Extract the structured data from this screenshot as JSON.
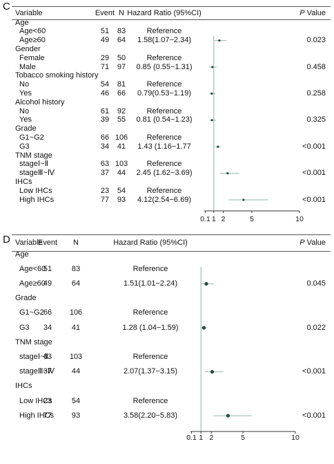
{
  "chart_data": [
    {
      "type": "forest",
      "panel_label": "C",
      "headers": {
        "variable": "Variable",
        "event": "Event",
        "n": "N",
        "hr": "Hazard Ratio (95%CI)",
        "p": "P",
        "p_suffix": " Value"
      },
      "xlim": [
        0,
        10
      ],
      "reference_line": 1,
      "ticks": [
        "0.1",
        "1",
        "2",
        "5",
        "10"
      ],
      "rows": [
        {
          "label": "Age",
          "header": true
        },
        {
          "label": "Age<60",
          "event": "51",
          "n": "83",
          "hr_text": "Reference"
        },
        {
          "label": "Age≥60",
          "event": "49",
          "n": "64",
          "hr_text": "1.58(1.07−2.34)",
          "hr": 1.58,
          "lo": 1.07,
          "hi": 2.34,
          "p": "0.023"
        },
        {
          "label": "Gender",
          "header": true
        },
        {
          "label": "Female",
          "event": "29",
          "n": "50",
          "hr_text": "Reference"
        },
        {
          "label": "Male",
          "event": "71",
          "n": "97",
          "hr_text": "0.85 (0.55−1.31)",
          "hr": 0.85,
          "lo": 0.55,
          "hi": 1.31,
          "p": "0.458"
        },
        {
          "label": "Tobacco smoking history",
          "header": true
        },
        {
          "label": "No",
          "event": "54",
          "n": "81",
          "hr_text": "Reference"
        },
        {
          "label": "Yes",
          "event": "46",
          "n": "66",
          "hr_text": "0.79(0.53−1.19)",
          "hr": 0.79,
          "lo": 0.53,
          "hi": 1.19,
          "p": "0.258"
        },
        {
          "label": "Alcohol history",
          "header": true
        },
        {
          "label": "No",
          "event": "61",
          "n": "92",
          "hr_text": "Reference"
        },
        {
          "label": "Yes",
          "event": "39",
          "n": "55",
          "hr_text": "0.81 (0.54−1.23)",
          "hr": 0.81,
          "lo": 0.54,
          "hi": 1.23,
          "p": "0.325"
        },
        {
          "label": "Grade",
          "header": true
        },
        {
          "label": "G1~G2",
          "event": "66",
          "n": "106",
          "hr_text": "Reference"
        },
        {
          "label": "G3",
          "event": "34",
          "n": "41",
          "hr_text": "1.43 (1.16−1.77",
          "hr": 1.43,
          "lo": 1.16,
          "hi": 1.77,
          "p": "<0.001"
        },
        {
          "label": "TNM stage",
          "header": true
        },
        {
          "label": "stageⅠ~Ⅱ",
          "event": "63",
          "n": "103",
          "hr_text": "Reference"
        },
        {
          "label": "stageⅢ~Ⅳ",
          "event": "37",
          "n": "44",
          "hr_text": "2.45 (1.62−3.69)",
          "hr": 2.45,
          "lo": 1.62,
          "hi": 3.69,
          "p": "<0.001"
        },
        {
          "label": "IHCs",
          "header": true
        },
        {
          "label": "Low IHCs",
          "event": "23",
          "n": "54",
          "hr_text": "Reference"
        },
        {
          "label": "High IHCs",
          "event": "77",
          "n": "93",
          "hr_text": "4.12(2.54−6.69)",
          "hr": 4.12,
          "lo": 2.54,
          "hi": 6.69,
          "p": "<0.001"
        }
      ]
    },
    {
      "type": "forest",
      "panel_label": "D",
      "headers": {
        "variable": "Variable",
        "event": "Event",
        "n": "N",
        "hr": "Hazard Ratio (95%CI)",
        "p": "P",
        "p_suffix": " Value"
      },
      "xlim": [
        0,
        10
      ],
      "reference_line": 1,
      "ticks": [
        "0.1",
        "1",
        "2",
        "5",
        "10"
      ],
      "rows": [
        {
          "label": "Age",
          "header": true
        },
        {
          "label": "Age<60",
          "event": "51",
          "n": "83",
          "hr_text": "Reference"
        },
        {
          "label": "Age≥60",
          "event": "49",
          "n": "64",
          "hr_text": "1.51(1.01−2.24)",
          "hr": 1.51,
          "lo": 1.01,
          "hi": 2.24,
          "p": "0.045"
        },
        {
          "label": "Grade",
          "header": true
        },
        {
          "label": "G1~G2",
          "event": "66",
          "n": "106",
          "hr_text": "Reference"
        },
        {
          "label": "G3",
          "event": "34",
          "n": "41",
          "hr_text": "1.28 (1.04−1.59)",
          "hr": 1.28,
          "lo": 1.04,
          "hi": 1.59,
          "p": "0.022"
        },
        {
          "label": "TNM stage",
          "header": true
        },
        {
          "label": "stageⅠ~Ⅱ",
          "event": "63",
          "n": "103",
          "hr_text": "Reference"
        },
        {
          "label": "stageⅢ~Ⅳ",
          "event": "37",
          "n": "44",
          "hr_text": "2.07(1.37−3.15)",
          "hr": 2.07,
          "lo": 1.37,
          "hi": 3.15,
          "p": "<0.001"
        },
        {
          "label": "IHCs",
          "header": true
        },
        {
          "label": "Low IHCs",
          "event": "23",
          "n": "54",
          "hr_text": "Reference"
        },
        {
          "label": "High IHCs",
          "event": "77",
          "n": "93",
          "hr_text": "3.58(2.20−5.83)",
          "hr": 3.58,
          "lo": 2.2,
          "hi": 5.83,
          "p": "<0.001"
        }
      ]
    }
  ],
  "colors": {
    "point": "#1f4e3d",
    "ci_line": "#9ab3aa",
    "ref_line": "#8fb0a5",
    "axis": "#333333"
  }
}
